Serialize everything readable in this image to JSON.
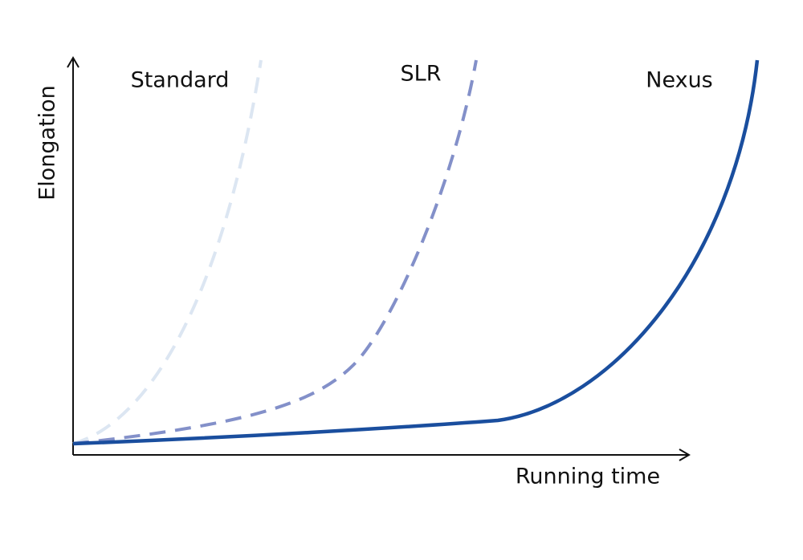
{
  "axes": {
    "y_label": "Elongation",
    "x_label": "Running time"
  },
  "curves": [
    {
      "label": "Standard"
    },
    {
      "label": "SLR"
    },
    {
      "label": "Nexus"
    }
  ]
}
